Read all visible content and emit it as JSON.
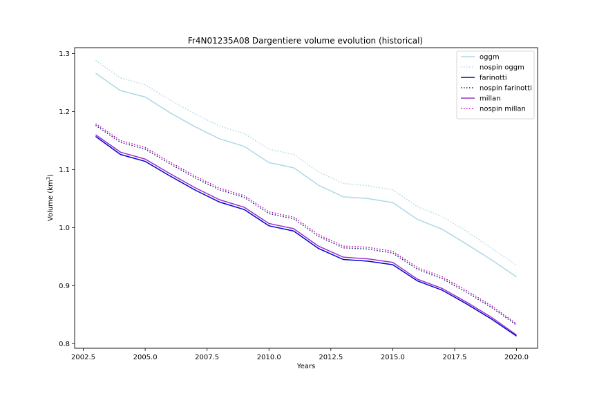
{
  "chart_data": {
    "type": "line",
    "title": "Fr4N01235A08 Dargentiere volume evolution (historical)",
    "xlabel": "Years",
    "ylabel_main": "Volume (km",
    "ylabel_sup": "3",
    "ylabel_close": ")",
    "xlim": [
      2002.15,
      2020.85
    ],
    "ylim": [
      0.792,
      1.31
    ],
    "xticks": [
      2002.5,
      2005.0,
      2007.5,
      2010.0,
      2012.5,
      2015.0,
      2017.5,
      2020.0
    ],
    "xtick_labels": [
      "2002.5",
      "2005.0",
      "2007.5",
      "2010.0",
      "2012.5",
      "2015.0",
      "2017.5",
      "2020.0"
    ],
    "yticks": [
      0.8,
      0.9,
      1.0,
      1.1,
      1.2,
      1.3
    ],
    "ytick_labels": [
      "0.8",
      "0.9",
      "1.0",
      "1.1",
      "1.2",
      "1.3"
    ],
    "grid": false,
    "legend_position": "top-right",
    "x": [
      2003,
      2004,
      2005,
      2006,
      2007,
      2008,
      2009,
      2010,
      2011,
      2012,
      2013,
      2014,
      2015,
      2016,
      2017,
      2018,
      2019,
      2020
    ],
    "series": [
      {
        "name": " oggm",
        "color": "#add8e6",
        "dash": "solid",
        "values": [
          1.266,
          1.236,
          1.225,
          1.198,
          1.174,
          1.153,
          1.14,
          1.112,
          1.103,
          1.073,
          1.053,
          1.05,
          1.043,
          1.014,
          0.997,
          0.971,
          0.944,
          0.915
        ]
      },
      {
        "name": "nospin oggm",
        "color": "#add8e6",
        "dash": "dotted",
        "values": [
          1.288,
          1.258,
          1.246,
          1.22,
          1.196,
          1.175,
          1.162,
          1.135,
          1.126,
          1.096,
          1.076,
          1.072,
          1.065,
          1.036,
          1.019,
          0.993,
          0.964,
          0.935
        ]
      },
      {
        "name": "farinotti",
        "color": "#0000cd",
        "dash": "solid",
        "values": [
          1.157,
          1.126,
          1.114,
          1.089,
          1.065,
          1.044,
          1.031,
          1.003,
          0.994,
          0.964,
          0.945,
          0.942,
          0.936,
          0.908,
          0.892,
          0.868,
          0.842,
          0.813
        ]
      },
      {
        "name": "nospin farinotti",
        "color": "#191970",
        "dash": "dotted",
        "values": [
          1.176,
          1.147,
          1.135,
          1.11,
          1.086,
          1.065,
          1.052,
          1.024,
          1.015,
          0.985,
          0.965,
          0.963,
          0.956,
          0.928,
          0.912,
          0.888,
          0.862,
          0.832
        ]
      },
      {
        "name": " millan",
        "color": "#9932cc",
        "dash": "solid",
        "values": [
          1.16,
          1.13,
          1.118,
          1.093,
          1.069,
          1.048,
          1.035,
          1.007,
          0.998,
          0.968,
          0.949,
          0.946,
          0.94,
          0.911,
          0.895,
          0.871,
          0.845,
          0.815
        ]
      },
      {
        "name": "nospin millan",
        "color": "#c000c0",
        "dash": "dotted",
        "values": [
          1.179,
          1.15,
          1.138,
          1.113,
          1.089,
          1.068,
          1.055,
          1.027,
          1.018,
          0.988,
          0.968,
          0.966,
          0.959,
          0.931,
          0.915,
          0.891,
          0.865,
          0.834
        ]
      }
    ]
  }
}
